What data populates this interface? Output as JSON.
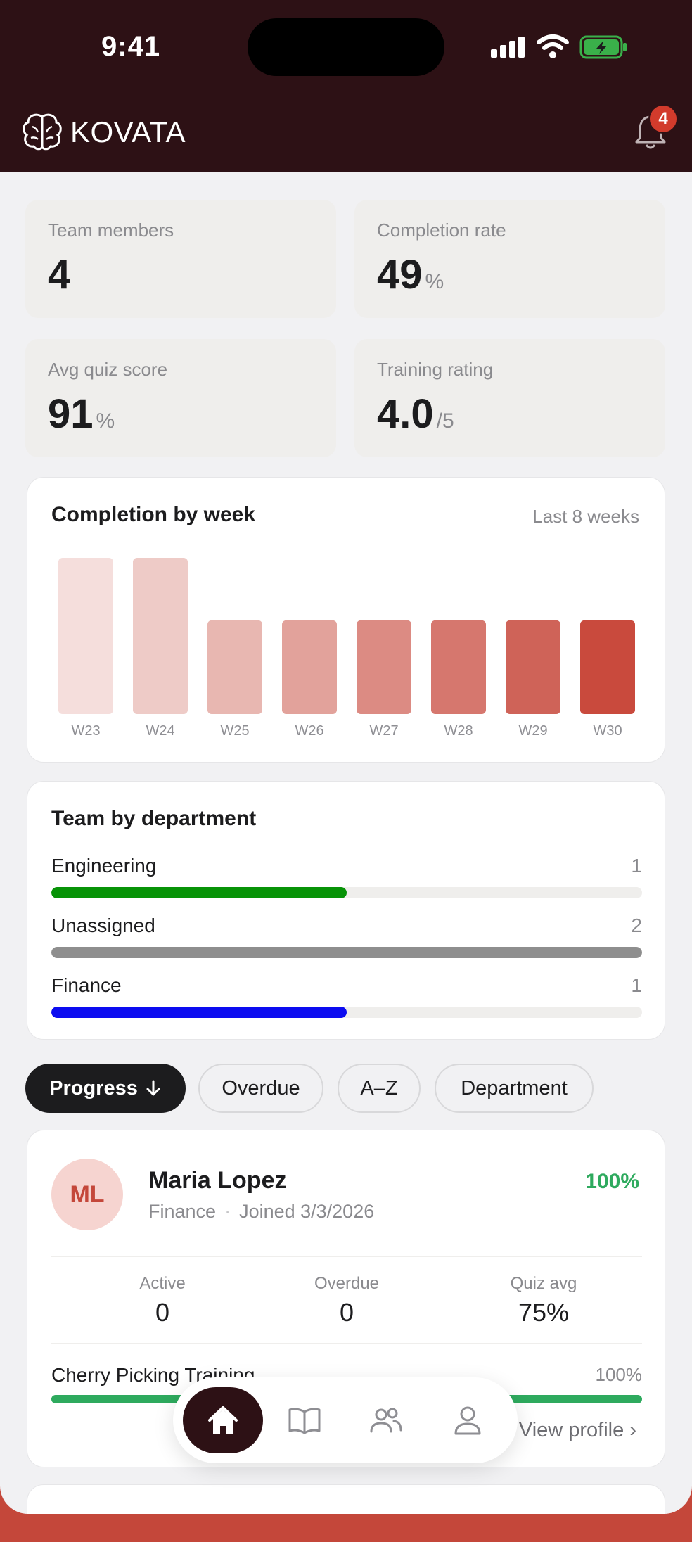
{
  "status_bar": {
    "time": "9:41"
  },
  "header": {
    "brand": "KOVATA",
    "notification_count": "4"
  },
  "stats": [
    {
      "label": "Team members",
      "value": "4",
      "unit": ""
    },
    {
      "label": "Completion rate",
      "value": "49",
      "unit": "%"
    },
    {
      "label": "Avg quiz score",
      "value": "91",
      "unit": "%"
    },
    {
      "label": "Training rating",
      "value": "4.0",
      "unit": "/5"
    }
  ],
  "weekly": {
    "title": "Completion by week",
    "range": "Last 8 weeks"
  },
  "chart_data": {
    "type": "bar",
    "categories": [
      "W23",
      "W24",
      "W25",
      "W26",
      "W27",
      "W28",
      "W29",
      "W30"
    ],
    "values": [
      100,
      100,
      60,
      60,
      60,
      60,
      60,
      60
    ],
    "colors": [
      "#f5dedc",
      "#eecbc7",
      "#e8b7b1",
      "#e2a29b",
      "#dc8b83",
      "#d6776e",
      "#cf6358",
      "#c94a3d"
    ],
    "ylim": [
      0,
      100
    ],
    "title": "Completion by week",
    "xlabel": "",
    "ylabel": ""
  },
  "departments": {
    "title": "Team by department",
    "items": [
      {
        "name": "Engineering",
        "count": "1",
        "fraction": 0.5,
        "color": "#079307"
      },
      {
        "name": "Unassigned",
        "count": "2",
        "fraction": 1.0,
        "color": "#8e8e8e"
      },
      {
        "name": "Finance",
        "count": "1",
        "fraction": 0.5,
        "color": "#0c0cf0"
      }
    ]
  },
  "sort_chips": [
    {
      "label": "Progress",
      "active": true
    },
    {
      "label": "Overdue",
      "active": false
    },
    {
      "label": "A–Z",
      "active": false
    },
    {
      "label": "Department",
      "active": false
    }
  ],
  "members": [
    {
      "initials": "ML",
      "name": "Maria Lopez",
      "department": "Finance",
      "joined": "Joined 3/3/2026",
      "progress": "100%",
      "stats": [
        {
          "label": "Active",
          "value": "0"
        },
        {
          "label": "Overdue",
          "value": "0"
        },
        {
          "label": "Quiz avg",
          "value": "75%"
        }
      ],
      "course": {
        "name": "Cherry Picking Training",
        "progress": "100%",
        "fraction": 1.0
      },
      "view_profile": "View profile"
    }
  ],
  "tabbar": {
    "items": [
      {
        "icon": "home-icon",
        "active": true
      },
      {
        "icon": "book-icon",
        "active": false
      },
      {
        "icon": "team-icon",
        "active": false
      },
      {
        "icon": "profile-icon",
        "active": false
      }
    ]
  },
  "colors": {
    "header_bg": "#2d1115",
    "accent": "#c4473a",
    "success": "#2eaa5e"
  }
}
